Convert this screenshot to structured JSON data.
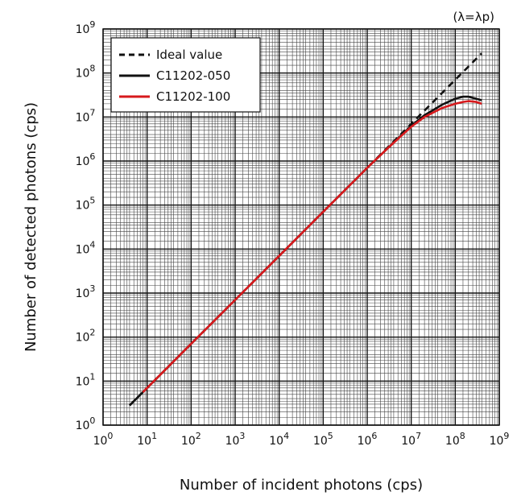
{
  "chart_data": {
    "type": "line",
    "note": "(λ=λp)",
    "xlabel": "Number of incident photons (cps)",
    "ylabel": "Number of detected photons (cps)",
    "x_scale": "log",
    "y_scale": "log",
    "xlim": [
      1,
      1000000000
    ],
    "ylim": [
      1,
      1000000000
    ],
    "grid": true,
    "legend_position": "top-left",
    "x_ticks": [
      {
        "base": "10",
        "exp": "0"
      },
      {
        "base": "10",
        "exp": "1"
      },
      {
        "base": "10",
        "exp": "2"
      },
      {
        "base": "10",
        "exp": "3"
      },
      {
        "base": "10",
        "exp": "4"
      },
      {
        "base": "10",
        "exp": "5"
      },
      {
        "base": "10",
        "exp": "6"
      },
      {
        "base": "10",
        "exp": "7"
      },
      {
        "base": "10",
        "exp": "8"
      },
      {
        "base": "10",
        "exp": "9"
      }
    ],
    "y_ticks": [
      {
        "base": "10",
        "exp": "0"
      },
      {
        "base": "10",
        "exp": "1"
      },
      {
        "base": "10",
        "exp": "2"
      },
      {
        "base": "10",
        "exp": "3"
      },
      {
        "base": "10",
        "exp": "4"
      },
      {
        "base": "10",
        "exp": "5"
      },
      {
        "base": "10",
        "exp": "6"
      },
      {
        "base": "10",
        "exp": "7"
      },
      {
        "base": "10",
        "exp": "8"
      },
      {
        "base": "10",
        "exp": "9"
      }
    ],
    "series": [
      {
        "name": "Ideal value",
        "color": "#111111",
        "style": "dashed",
        "x": [
          4,
          10,
          100,
          1000,
          10000,
          100000,
          1000000,
          10000000,
          100000000,
          400000000
        ],
        "y": [
          2.8,
          7,
          70,
          700,
          7000,
          70000,
          700000,
          7000000,
          70000000,
          280000000
        ]
      },
      {
        "name": "C11202-050",
        "color": "#111111",
        "style": "solid",
        "x": [
          4,
          10,
          100,
          1000,
          10000,
          100000,
          1000000,
          3000000,
          10000000,
          20000000,
          50000000,
          100000000,
          150000000,
          200000000,
          300000000,
          400000000
        ],
        "y": [
          2.8,
          7,
          70,
          700,
          7000,
          70000,
          700000,
          2000000,
          6300000,
          11000000,
          19000000,
          26000000,
          29000000,
          29000000,
          26000000,
          24000000
        ]
      },
      {
        "name": "C11202-100",
        "color": "#d7191c",
        "style": "solid",
        "x": [
          8,
          10,
          100,
          1000,
          10000,
          100000,
          1000000,
          3000000,
          10000000,
          20000000,
          50000000,
          100000000,
          150000000,
          200000000,
          300000000,
          400000000
        ],
        "y": [
          5.6,
          7,
          70,
          700,
          7000,
          70000,
          700000,
          2000000,
          6000000,
          10000000,
          16000000,
          20000000,
          22000000,
          23000000,
          22000000,
          20000000
        ]
      }
    ]
  }
}
